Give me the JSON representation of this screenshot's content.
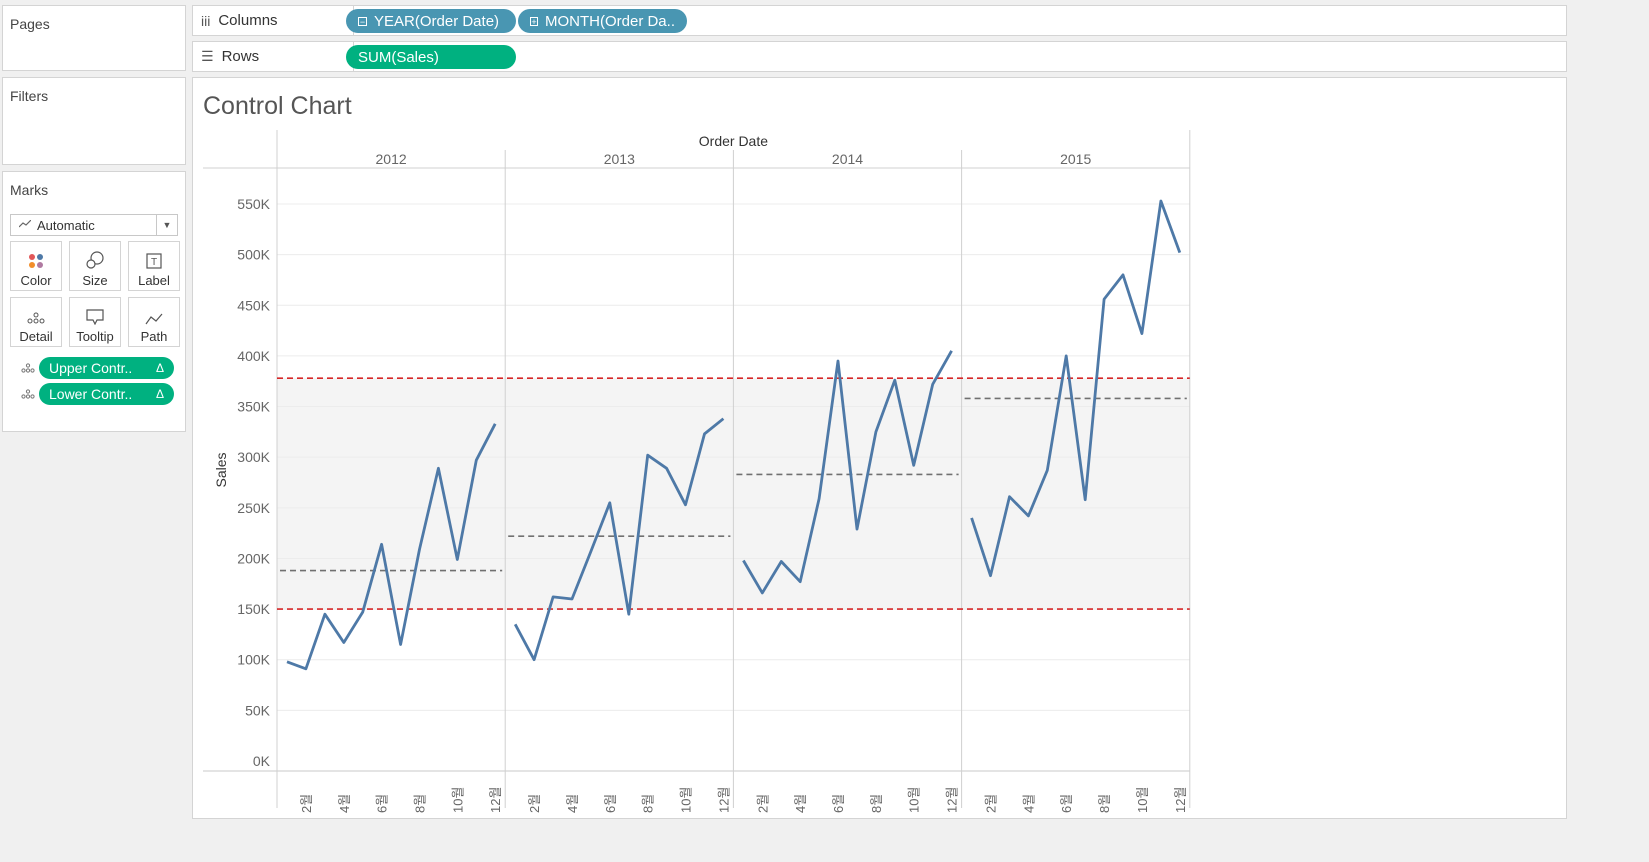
{
  "pages": {
    "title": "Pages"
  },
  "filters": {
    "title": "Filters"
  },
  "marks": {
    "title": "Marks",
    "mark_type": "Automatic",
    "buttons": [
      {
        "label": "Color",
        "icon": "color-icon"
      },
      {
        "label": "Size",
        "icon": "size-icon"
      },
      {
        "label": "Label",
        "icon": "label-icon"
      },
      {
        "label": "Detail",
        "icon": "detail-icon"
      },
      {
        "label": "Tooltip",
        "icon": "tooltip-icon"
      },
      {
        "label": "Path",
        "icon": "path-icon"
      }
    ],
    "fields": [
      {
        "label": "Upper Contr..",
        "badge": "Δ"
      },
      {
        "label": "Lower Contr..",
        "badge": "Δ"
      }
    ]
  },
  "columns": {
    "label": "Columns",
    "pills": [
      "YEAR(Order Date)",
      "MONTH(Order Da.."
    ]
  },
  "rows": {
    "label": "Rows",
    "pills": [
      "SUM(Sales)"
    ]
  },
  "view": {
    "title": "Control Chart"
  },
  "colors": {
    "line": "#4e79a7",
    "control_limits": "#d62728",
    "mean": "#707070",
    "pill_dimension": "#4996b2",
    "pill_measure": "#00b180"
  },
  "chart_data": {
    "type": "line",
    "title": "Control Chart",
    "header": "Order Date",
    "ylabel": "Sales",
    "ylim": [
      0,
      580000
    ],
    "yticks": [
      0,
      50000,
      100000,
      150000,
      200000,
      250000,
      300000,
      350000,
      400000,
      450000,
      500000,
      550000
    ],
    "ytick_labels": [
      "0K",
      "50K",
      "100K",
      "150K",
      "200K",
      "250K",
      "300K",
      "350K",
      "400K",
      "450K",
      "500K",
      "550K"
    ],
    "xtick_labels": [
      "2",
      "4",
      "6",
      "8",
      "10",
      "12"
    ],
    "xtick_suffix": "월",
    "upper_control_limit": 378000,
    "lower_control_limit": 150000,
    "series": [
      {
        "year": "2012",
        "mean": 188000,
        "values": [
          98000,
          91000,
          145000,
          117000,
          147000,
          214000,
          115000,
          209000,
          289000,
          199000,
          297000,
          333000
        ]
      },
      {
        "year": "2013",
        "mean": 222000,
        "values": [
          135000,
          100000,
          162000,
          160000,
          207000,
          255000,
          145000,
          302000,
          289000,
          253000,
          323000,
          338000
        ]
      },
      {
        "year": "2014",
        "mean": 283000,
        "values": [
          198000,
          166000,
          197000,
          177000,
          259000,
          395000,
          229000,
          325000,
          376000,
          292000,
          372000,
          405000
        ]
      },
      {
        "year": "2015",
        "mean": 358000,
        "values": [
          240000,
          183000,
          261000,
          242000,
          287000,
          400000,
          258000,
          456000,
          480000,
          422000,
          553000,
          502000
        ]
      }
    ]
  }
}
